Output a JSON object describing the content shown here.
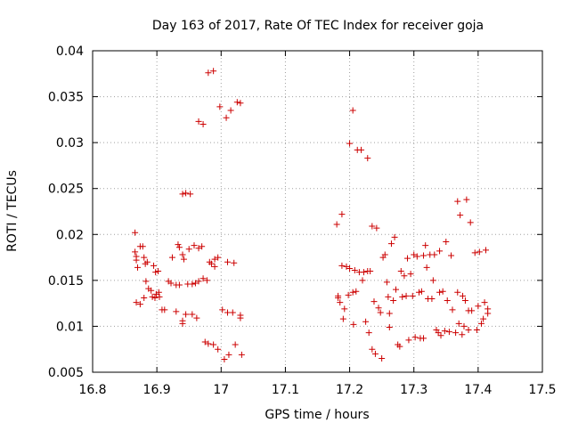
{
  "chart_data": {
    "type": "scatter",
    "title": "Day 163 of 2017, Rate Of TEC Index for receiver goja",
    "xlabel": "GPS time / hours",
    "ylabel": "ROTI / TECUs",
    "xlim": [
      16.8,
      17.5
    ],
    "ylim": [
      0.005,
      0.04
    ],
    "xticks": [
      "16.8",
      "16.9",
      "17",
      "17.1",
      "17.2",
      "17.3",
      "17.4",
      "17.5"
    ],
    "yticks": [
      "0.005",
      "0.01",
      "0.015",
      "0.02",
      "0.025",
      "0.03",
      "0.035",
      "0.04"
    ],
    "grid": true,
    "marker": "+",
    "color": "#cc0000",
    "points": [
      [
        16.866,
        0.0202
      ],
      [
        16.866,
        0.0181
      ],
      [
        16.868,
        0.0176
      ],
      [
        16.868,
        0.0172
      ],
      [
        16.87,
        0.0164
      ],
      [
        16.874,
        0.0187
      ],
      [
        16.878,
        0.0187
      ],
      [
        16.88,
        0.0175
      ],
      [
        16.882,
        0.0168
      ],
      [
        16.885,
        0.017
      ],
      [
        16.868,
        0.0126
      ],
      [
        16.874,
        0.0124
      ],
      [
        16.88,
        0.0131
      ],
      [
        16.883,
        0.0149
      ],
      [
        16.887,
        0.0141
      ],
      [
        16.891,
        0.0139
      ],
      [
        16.893,
        0.0132
      ],
      [
        16.897,
        0.0131
      ],
      [
        16.899,
        0.0135
      ],
      [
        16.903,
        0.0137
      ],
      [
        16.895,
        0.0166
      ],
      [
        16.898,
        0.0159
      ],
      [
        16.902,
        0.016
      ],
      [
        16.904,
        0.0132
      ],
      [
        16.908,
        0.0118
      ],
      [
        16.912,
        0.0118
      ],
      [
        16.918,
        0.0149
      ],
      [
        16.922,
        0.0147
      ],
      [
        16.924,
        0.0175
      ],
      [
        16.93,
        0.0116
      ],
      [
        16.93,
        0.0145
      ],
      [
        16.933,
        0.0189
      ],
      [
        16.935,
        0.0186
      ],
      [
        16.935,
        0.0145
      ],
      [
        16.94,
        0.0106
      ],
      [
        16.94,
        0.0103
      ],
      [
        16.94,
        0.0178
      ],
      [
        16.942,
        0.0173
      ],
      [
        16.945,
        0.0113
      ],
      [
        16.948,
        0.0146
      ],
      [
        16.94,
        0.0244
      ],
      [
        16.945,
        0.0245
      ],
      [
        16.952,
        0.0244
      ],
      [
        16.95,
        0.0184
      ],
      [
        16.955,
        0.0146
      ],
      [
        16.955,
        0.0113
      ],
      [
        16.958,
        0.0188
      ],
      [
        16.96,
        0.0147
      ],
      [
        16.962,
        0.0109
      ],
      [
        16.965,
        0.0185
      ],
      [
        16.965,
        0.0323
      ],
      [
        16.972,
        0.032
      ],
      [
        16.965,
        0.0149
      ],
      [
        16.97,
        0.0187
      ],
      [
        16.972,
        0.0152
      ],
      [
        16.975,
        0.0083
      ],
      [
        16.978,
        0.015
      ],
      [
        16.98,
        0.0081
      ],
      [
        16.982,
        0.017
      ],
      [
        16.985,
        0.0168
      ],
      [
        16.98,
        0.0376
      ],
      [
        16.988,
        0.0378
      ],
      [
        16.988,
        0.008
      ],
      [
        16.99,
        0.0173
      ],
      [
        16.99,
        0.0165
      ],
      [
        16.995,
        0.0175
      ],
      [
        16.995,
        0.0075
      ],
      [
        16.998,
        0.0339
      ],
      [
        17.002,
        0.0118
      ],
      [
        17.005,
        0.0064
      ],
      [
        17.008,
        0.0327
      ],
      [
        17.01,
        0.017
      ],
      [
        17.01,
        0.0115
      ],
      [
        17.012,
        0.0069
      ],
      [
        17.015,
        0.0335
      ],
      [
        17.018,
        0.0115
      ],
      [
        17.02,
        0.0169
      ],
      [
        17.022,
        0.008
      ],
      [
        17.025,
        0.0344
      ],
      [
        17.03,
        0.0109
      ],
      [
        17.03,
        0.0343
      ],
      [
        17.03,
        0.0112
      ],
      [
        17.032,
        0.0069
      ],
      [
        17.18,
        0.0211
      ],
      [
        17.182,
        0.0133
      ],
      [
        17.182,
        0.0131
      ],
      [
        17.185,
        0.0126
      ],
      [
        17.188,
        0.0222
      ],
      [
        17.188,
        0.0166
      ],
      [
        17.19,
        0.0108
      ],
      [
        17.192,
        0.0119
      ],
      [
        17.195,
        0.0165
      ],
      [
        17.198,
        0.0134
      ],
      [
        17.2,
        0.0299
      ],
      [
        17.2,
        0.0163
      ],
      [
        17.205,
        0.0335
      ],
      [
        17.205,
        0.0137
      ],
      [
        17.206,
        0.0102
      ],
      [
        17.208,
        0.0161
      ],
      [
        17.21,
        0.0138
      ],
      [
        17.212,
        0.0292
      ],
      [
        17.215,
        0.0159
      ],
      [
        17.218,
        0.0292
      ],
      [
        17.22,
        0.015
      ],
      [
        17.222,
        0.0159
      ],
      [
        17.225,
        0.0105
      ],
      [
        17.228,
        0.0283
      ],
      [
        17.228,
        0.016
      ],
      [
        17.23,
        0.0093
      ],
      [
        17.232,
        0.016
      ],
      [
        17.235,
        0.0209
      ],
      [
        17.235,
        0.0075
      ],
      [
        17.238,
        0.0127
      ],
      [
        17.24,
        0.007
      ],
      [
        17.242,
        0.0207
      ],
      [
        17.245,
        0.012
      ],
      [
        17.248,
        0.0115
      ],
      [
        17.25,
        0.0065
      ],
      [
        17.252,
        0.0175
      ],
      [
        17.255,
        0.0178
      ],
      [
        17.258,
        0.0148
      ],
      [
        17.26,
        0.0132
      ],
      [
        17.262,
        0.0114
      ],
      [
        17.262,
        0.0099
      ],
      [
        17.265,
        0.019
      ],
      [
        17.268,
        0.0128
      ],
      [
        17.27,
        0.0197
      ],
      [
        17.272,
        0.014
      ],
      [
        17.275,
        0.008
      ],
      [
        17.278,
        0.0078
      ],
      [
        17.28,
        0.016
      ],
      [
        17.282,
        0.0132
      ],
      [
        17.285,
        0.0155
      ],
      [
        17.288,
        0.0133
      ],
      [
        17.29,
        0.0174
      ],
      [
        17.292,
        0.0085
      ],
      [
        17.295,
        0.0157
      ],
      [
        17.298,
        0.0133
      ],
      [
        17.3,
        0.0178
      ],
      [
        17.302,
        0.0088
      ],
      [
        17.305,
        0.0176
      ],
      [
        17.308,
        0.0137
      ],
      [
        17.31,
        0.0087
      ],
      [
        17.312,
        0.0138
      ],
      [
        17.315,
        0.0177
      ],
      [
        17.315,
        0.0087
      ],
      [
        17.318,
        0.0188
      ],
      [
        17.32,
        0.0164
      ],
      [
        17.322,
        0.013
      ],
      [
        17.325,
        0.0178
      ],
      [
        17.328,
        0.013
      ],
      [
        17.33,
        0.015
      ],
      [
        17.332,
        0.0178
      ],
      [
        17.335,
        0.0096
      ],
      [
        17.338,
        0.0093
      ],
      [
        17.34,
        0.0137
      ],
      [
        17.34,
        0.0182
      ],
      [
        17.342,
        0.009
      ],
      [
        17.345,
        0.0138
      ],
      [
        17.348,
        0.0095
      ],
      [
        17.35,
        0.0192
      ],
      [
        17.352,
        0.0128
      ],
      [
        17.355,
        0.0094
      ],
      [
        17.358,
        0.0177
      ],
      [
        17.36,
        0.0118
      ],
      [
        17.365,
        0.0093
      ],
      [
        17.368,
        0.0137
      ],
      [
        17.368,
        0.0236
      ],
      [
        17.37,
        0.0103
      ],
      [
        17.372,
        0.0221
      ],
      [
        17.375,
        0.0091
      ],
      [
        17.376,
        0.0133
      ],
      [
        17.378,
        0.01
      ],
      [
        17.38,
        0.0128
      ],
      [
        17.382,
        0.0238
      ],
      [
        17.385,
        0.0096
      ],
      [
        17.385,
        0.0117
      ],
      [
        17.388,
        0.0213
      ],
      [
        17.39,
        0.0117
      ],
      [
        17.395,
        0.018
      ],
      [
        17.398,
        0.0096
      ],
      [
        17.4,
        0.0122
      ],
      [
        17.402,
        0.0181
      ],
      [
        17.405,
        0.0103
      ],
      [
        17.408,
        0.0108
      ],
      [
        17.41,
        0.0126
      ],
      [
        17.412,
        0.0183
      ],
      [
        17.415,
        0.0114
      ],
      [
        17.415,
        0.0119
      ]
    ]
  }
}
